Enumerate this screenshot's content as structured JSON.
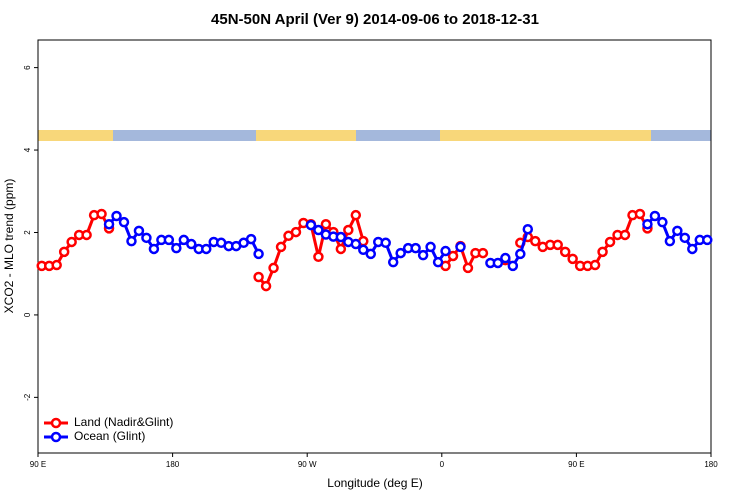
{
  "chart_data": {
    "type": "line",
    "title": "45N-50N April (Ver 9)   2014-09-06 to 2018-12-31",
    "x_label": "Longitude (deg E)",
    "y_label": "XCO2 - MLO trend (ppm)",
    "x": [
      92.5,
      97.5,
      102.5,
      107.5,
      112.5,
      117.5,
      122.5,
      127.5,
      132.5,
      137.5,
      142.5,
      147.5,
      152.5,
      157.5,
      162.5,
      167.5,
      172.5,
      177.5,
      182.5,
      187.5,
      192.5,
      197.5,
      202.5,
      207.5,
      212.5,
      217.5,
      222.5,
      227.5,
      232.5,
      237.5,
      242.5,
      247.5,
      252.5,
      257.5,
      262.5,
      267.5,
      272.5,
      277.5,
      282.5,
      287.5,
      292.5,
      297.5,
      302.5,
      307.5,
      312.5,
      317.5,
      322.5,
      327.5,
      332.5,
      337.5,
      342.5,
      347.5,
      352.5,
      357.5,
      362.5,
      367.5,
      372.5,
      377.5,
      382.5,
      387.5,
      392.5,
      397.5,
      402.5,
      407.5,
      412.5,
      417.5,
      422.5,
      427.5,
      432.5,
      437.5,
      442.5,
      447.5,
      452.5,
      457.5,
      462.5,
      467.5,
      472.5,
      477.5,
      482.5,
      487.5,
      492.5,
      497.5,
      502.5,
      507.5,
      512.5,
      517.5,
      522.5,
      527.5,
      532.5,
      537.5
    ],
    "series": [
      {
        "name": "Land (Nadir&Glint)",
        "color": "#ff0000",
        "values": [
          1.19,
          1.19,
          1.21,
          1.53,
          1.77,
          1.94,
          1.94,
          2.42,
          2.45,
          2.1,
          null,
          null,
          null,
          null,
          null,
          null,
          null,
          null,
          null,
          null,
          null,
          null,
          null,
          null,
          null,
          null,
          null,
          null,
          null,
          0.92,
          0.7,
          1.14,
          1.65,
          1.92,
          2.01,
          2.23,
          2.2,
          1.41,
          2.2,
          2.01,
          1.6,
          2.06,
          2.42,
          1.79,
          null,
          null,
          null,
          null,
          null,
          null,
          null,
          null,
          null,
          null,
          1.19,
          1.43,
          1.67,
          1.14,
          1.5,
          1.5,
          null,
          null,
          1.33,
          null,
          1.75,
          1.89,
          1.79,
          1.65,
          1.7,
          1.7,
          1.53,
          1.36,
          1.19,
          1.19,
          1.21,
          1.53,
          1.77,
          1.94,
          1.94,
          2.42,
          2.45,
          2.1,
          null,
          null,
          null,
          null,
          null,
          null,
          null,
          null
        ]
      },
      {
        "name": "Ocean (Glint)",
        "color": "#0000ff",
        "values": [
          null,
          null,
          null,
          null,
          null,
          null,
          null,
          null,
          null,
          2.2,
          2.4,
          2.25,
          1.79,
          2.04,
          1.87,
          1.6,
          1.82,
          1.82,
          1.62,
          1.82,
          1.72,
          1.6,
          1.6,
          1.77,
          1.75,
          1.67,
          1.67,
          1.75,
          1.84,
          1.48,
          null,
          null,
          null,
          null,
          null,
          null,
          2.18,
          2.06,
          1.95,
          1.9,
          1.89,
          1.77,
          1.72,
          1.58,
          1.48,
          1.77,
          1.75,
          1.28,
          1.5,
          1.62,
          1.62,
          1.45,
          1.65,
          1.28,
          1.55,
          null,
          1.65,
          null,
          null,
          null,
          1.26,
          1.26,
          1.38,
          1.19,
          1.48,
          2.08,
          null,
          null,
          null,
          null,
          null,
          null,
          null,
          null,
          null,
          null,
          null,
          null,
          null,
          null,
          null,
          2.2,
          2.4,
          2.25,
          1.79,
          2.04,
          1.87,
          1.6,
          1.82,
          1.82
        ]
      }
    ],
    "xlim": [
      90,
      540
    ],
    "xticks": [
      {
        "value": 90,
        "label": "90 E"
      },
      {
        "value": 180,
        "label": "180"
      },
      {
        "value": 270,
        "label": "90 W"
      },
      {
        "value": 360,
        "label": "0"
      },
      {
        "value": 450,
        "label": "90 E"
      },
      {
        "value": 540,
        "label": "180"
      }
    ],
    "ylim": [
      -3.35,
      6.67
    ],
    "yticks": [
      -2,
      0,
      2,
      4,
      6
    ],
    "legend": "bottom-left"
  }
}
